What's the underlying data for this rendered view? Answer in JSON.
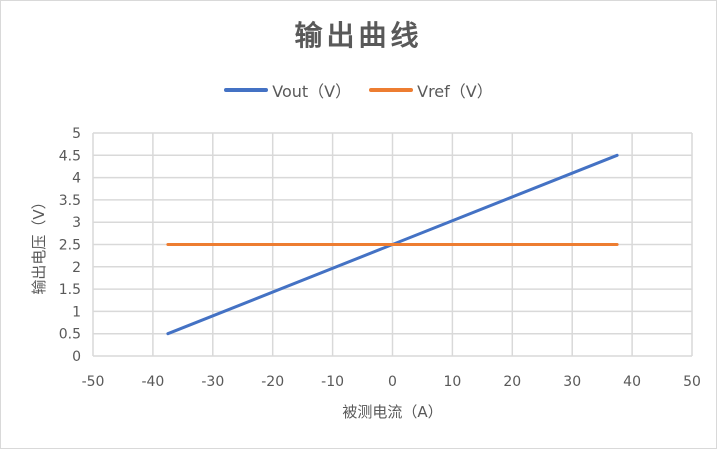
{
  "chart_data": {
    "type": "line",
    "title": "输出曲线",
    "xlabel": "被测电流（A）",
    "ylabel": "输出电压（V）",
    "xlim": [
      -50,
      50
    ],
    "ylim": [
      0,
      5
    ],
    "xticks": [
      -50,
      -40,
      -30,
      -20,
      -10,
      0,
      10,
      20,
      30,
      40,
      50
    ],
    "yticks": [
      0,
      0.5,
      1,
      1.5,
      2,
      2.5,
      3,
      3.5,
      4,
      4.5,
      5
    ],
    "grid": true,
    "legend_position": "top",
    "x": [
      -37.5,
      37.5
    ],
    "series": [
      {
        "name": "Vout（V）",
        "color": "#4472c4",
        "values": [
          0.5,
          4.5
        ]
      },
      {
        "name": "Vref（V）",
        "color": "#ed7d31",
        "values": [
          2.5,
          2.5
        ]
      }
    ]
  },
  "legend": [
    {
      "label": "Vout（V）",
      "color": "#4472c4"
    },
    {
      "label": "Vref（V）",
      "color": "#ed7d31"
    }
  ]
}
